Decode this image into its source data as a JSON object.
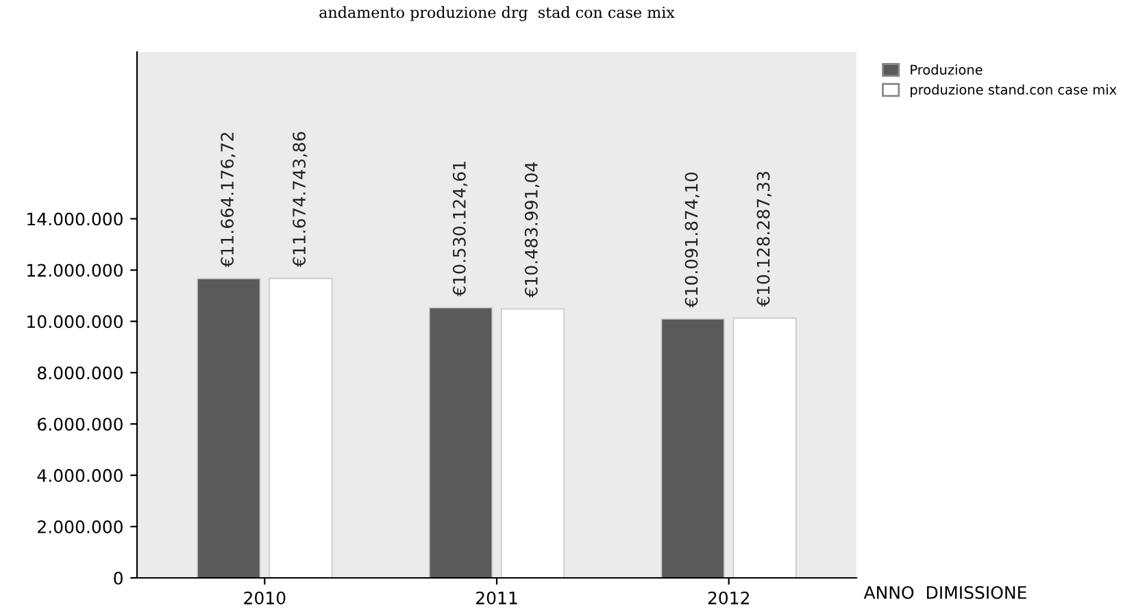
{
  "chart_data": {
    "type": "bar",
    "title": "andamento produzione drg  stad con case mix",
    "xlabel": "ANNO  DIMISSIONE",
    "categories": [
      "2010",
      "2011",
      "2012"
    ],
    "series": [
      {
        "name": "Produzione",
        "color": "#5a5a5a",
        "values": [
          11664176.72,
          10530124.61,
          10091874.1
        ],
        "value_labels": [
          "€11.664.176,72",
          "€10.530.124,61",
          "€10.091.874,10"
        ]
      },
      {
        "name": "produzione stand.con case mix",
        "color": "#ffffff",
        "values": [
          11674743.86,
          10483991.04,
          10128287.33
        ],
        "value_labels": [
          "€11.674.743,86",
          "€10.483.991,04",
          "€10.128.287,33"
        ]
      }
    ],
    "ylim": [
      0,
      20500000
    ],
    "yticks": [
      {
        "value": 0,
        "label": "0"
      },
      {
        "value": 2000000,
        "label": "2.000.000"
      },
      {
        "value": 4000000,
        "label": "4.000.000"
      },
      {
        "value": 6000000,
        "label": "6.000.000"
      },
      {
        "value": 8000000,
        "label": "8.000.000"
      },
      {
        "value": 10000000,
        "label": "10.000.000"
      },
      {
        "value": 12000000,
        "label": "12.000.000"
      },
      {
        "value": 14000000,
        "label": "14.000.000"
      }
    ],
    "grid": false,
    "legend": "top right"
  }
}
